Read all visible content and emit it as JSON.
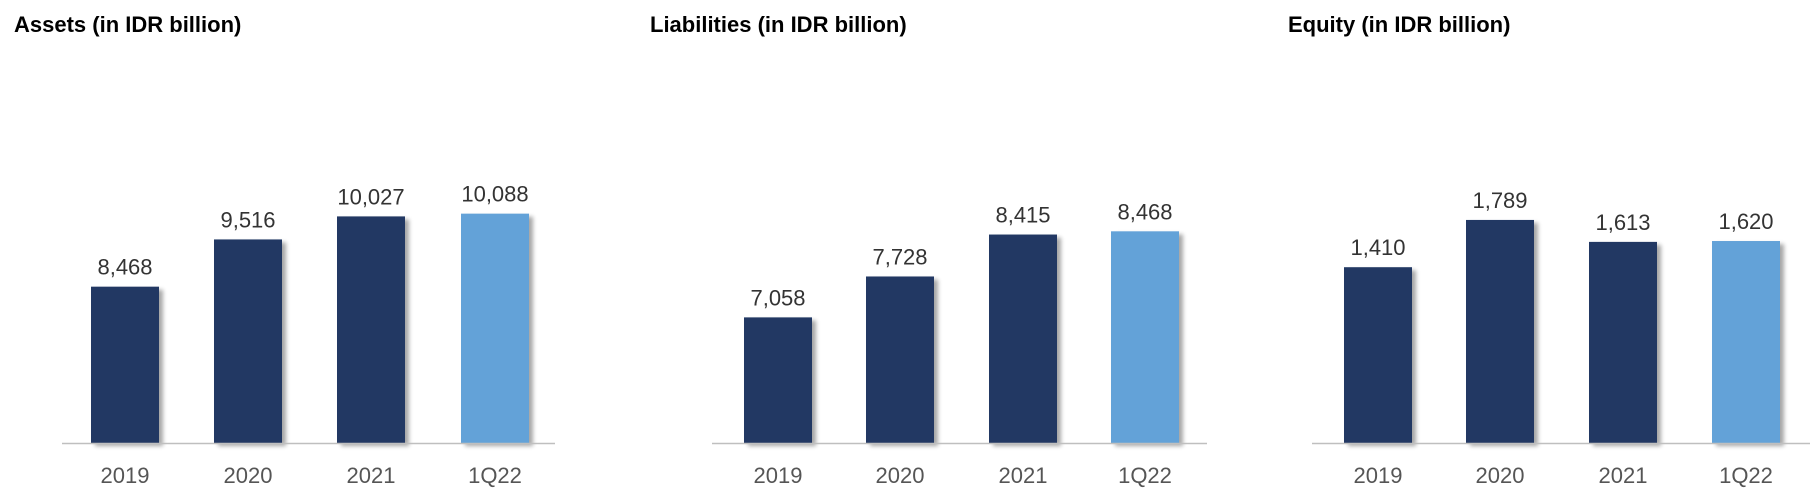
{
  "colors": {
    "bar": "#203864",
    "bar_highlight": "#64a2d8",
    "baseline": "#bfbfbf",
    "shadow": "#9e9e9e"
  },
  "chart_data": [
    {
      "type": "bar",
      "title": "Assets (in IDR billion)",
      "categories": [
        "2019",
        "2020",
        "2021",
        "1Q22"
      ],
      "values": [
        8468,
        9516,
        10027,
        10088
      ],
      "value_labels": [
        "8,468",
        "9,516",
        "10,027",
        "10,088"
      ],
      "highlight_index": 3,
      "ylim": [
        5000,
        11500
      ],
      "grid": false
    },
    {
      "type": "bar",
      "title": "Liabilities (in IDR billion)",
      "categories": [
        "2019",
        "2020",
        "2021",
        "1Q22"
      ],
      "values": [
        7058,
        7728,
        8415,
        8468
      ],
      "value_labels": [
        "7,058",
        "7,728",
        "8,415",
        "8,468"
      ],
      "highlight_index": 3,
      "ylim": [
        5000,
        9800
      ],
      "grid": false
    },
    {
      "type": "bar",
      "title": "Equity (in IDR billion)",
      "categories": [
        "2019",
        "2020",
        "2021",
        "1Q22"
      ],
      "values": [
        1410,
        1789,
        1613,
        1620
      ],
      "value_labels": [
        "1,410",
        "1,789",
        "1,613",
        "1,620"
      ],
      "highlight_index": 3,
      "ylim": [
        0,
        2350
      ],
      "grid": false
    }
  ]
}
